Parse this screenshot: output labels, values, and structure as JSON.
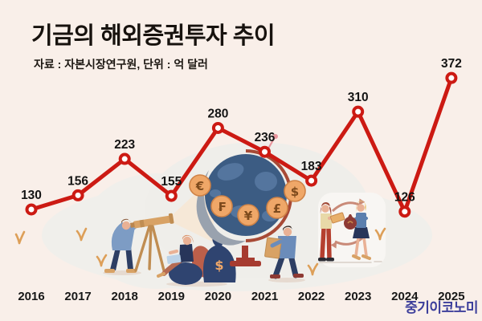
{
  "header": {
    "title": "기금의 해외증권투자 추이",
    "source_note": "자료 : 자본시장연구원, 단위 : 억 달러"
  },
  "footer": {
    "logo": "중기이코노미"
  },
  "chart_data": {
    "type": "line",
    "title": "기금의 해외증권투자 추이",
    "source": "자본시장연구원",
    "unit": "억 달러",
    "categories": [
      "2016",
      "2017",
      "2018",
      "2019",
      "2020",
      "2021",
      "2022",
      "2023",
      "2024",
      "2025"
    ],
    "series": [
      {
        "name": "기금 해외증권투자",
        "values": [
          130,
          156,
          223,
          155,
          280,
          236,
          183,
          310,
          126,
          372
        ]
      }
    ],
    "data_labels": true,
    "grid": false,
    "legend": "none",
    "line_color": "#cc1a13",
    "marker": "open-circle",
    "label_color": "#141414"
  },
  "illustration": {
    "currency_coins": [
      "€",
      "₣",
      "¥",
      "£",
      "$"
    ],
    "money_bag_symbol": "$",
    "colors": {
      "background": "#f9efe9",
      "blob": "#f0efeb",
      "globe": "#3c5c83",
      "globe_patch": "#54759e",
      "globe_shadow": "#99a2ae",
      "coin": "#efa768",
      "stand": "#a63b30",
      "beam": "#f6e8d7",
      "accent_navy": "#2d3e63",
      "accent_blue": "#7d9cc4",
      "accent_tan": "#d8a265",
      "logo_blue": "#3c3e9b"
    }
  }
}
